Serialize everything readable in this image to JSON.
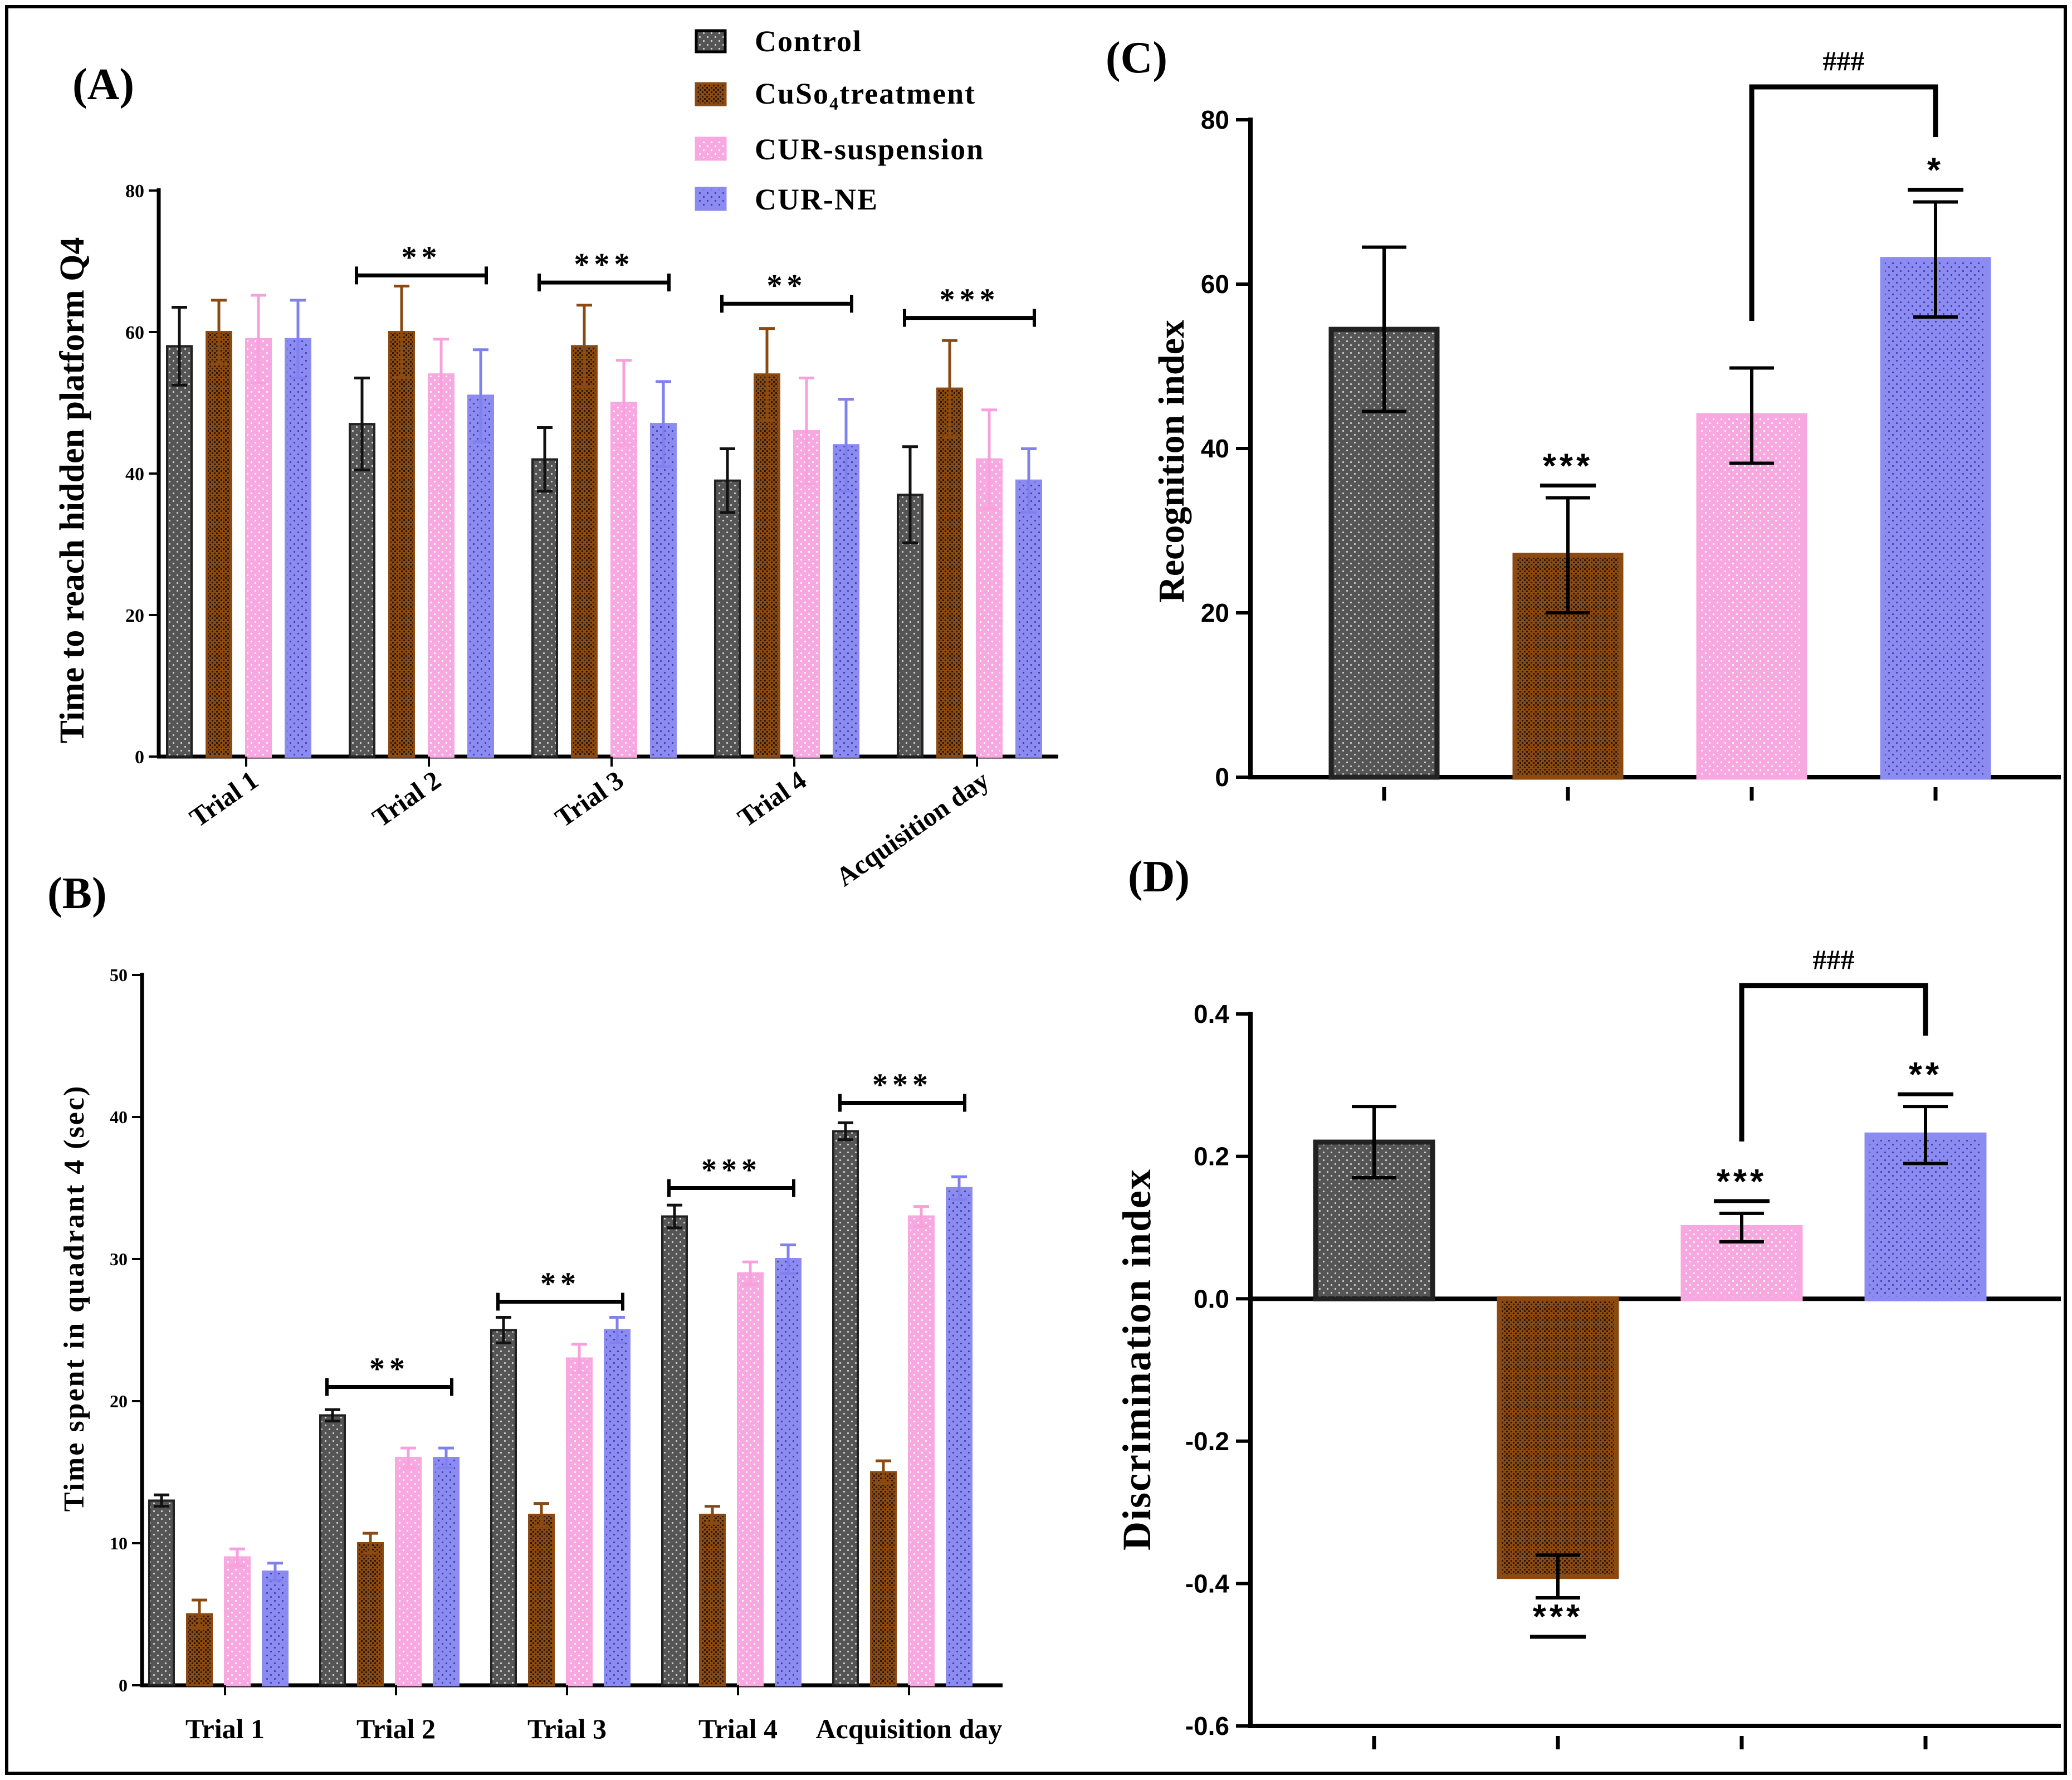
{
  "legend": {
    "items": [
      {
        "name": "Control",
        "color": "#555555"
      },
      {
        "name": "CuSo₄treatment",
        "color": "#8B4A12"
      },
      {
        "name": "CUR-suspension",
        "color": "#F8A8E0"
      },
      {
        "name": "CUR-NE",
        "color": "#8C8CF0"
      }
    ],
    "position": "top-center"
  },
  "chart_data": [
    {
      "id": "A",
      "panel_label": "(A)",
      "type": "bar",
      "title": "",
      "xlabel": "",
      "ylabel": "Time to reach hidden platform Q4",
      "ylim": [
        0,
        80
      ],
      "yticks": [
        "0",
        "20",
        "40",
        "60",
        "80"
      ],
      "categories": [
        "Trial 1",
        "Trial 2",
        "Trial 3",
        "Trial 4",
        "Acquisition day"
      ],
      "series": [
        {
          "name": "Control",
          "values": [
            58,
            47,
            42,
            39,
            37
          ],
          "errors": [
            5.5,
            6.5,
            4.5,
            4.5,
            6.8
          ]
        },
        {
          "name": "CuSo₄treatment",
          "values": [
            60,
            60,
            58,
            54,
            52
          ],
          "errors": [
            4.5,
            6.5,
            5.8,
            6.5,
            6.8
          ]
        },
        {
          "name": "CUR-suspension",
          "values": [
            59,
            54,
            50,
            46,
            42
          ],
          "errors": [
            6.2,
            5,
            6,
            7.5,
            7
          ]
        },
        {
          "name": "CUR-NE",
          "values": [
            59,
            51,
            47,
            44,
            39
          ],
          "errors": [
            5.5,
            6.5,
            6,
            6.5,
            4.5
          ]
        }
      ],
      "annotations": [
        {
          "text": "**",
          "category_index": 1,
          "y_value": 68
        },
        {
          "text": "***",
          "category_index": 2,
          "y_value": 67
        },
        {
          "text": "**",
          "category_index": 3,
          "y_value": 64
        },
        {
          "text": "***",
          "category_index": 4,
          "y_value": 62
        }
      ]
    },
    {
      "id": "B",
      "panel_label": "(B)",
      "type": "bar",
      "title": "",
      "xlabel": "",
      "ylabel": "Time spent in quadrant 4 (sec)",
      "ylim": [
        0,
        50
      ],
      "yticks": [
        "0",
        "10",
        "20",
        "30",
        "40",
        "50"
      ],
      "categories": [
        "Trial 1",
        "Trial 2",
        "Trial 3",
        "Trial 4",
        "Acquisition day"
      ],
      "series": [
        {
          "name": "Control",
          "values": [
            13,
            19,
            25,
            33,
            39
          ],
          "errors": [
            0.4,
            0.4,
            0.9,
            0.8,
            0.6
          ]
        },
        {
          "name": "CuSo₄treatment",
          "values": [
            5,
            10,
            12,
            12,
            15
          ],
          "errors": [
            1,
            0.7,
            0.8,
            0.6,
            0.8
          ]
        },
        {
          "name": "CUR-suspension",
          "values": [
            9,
            16,
            23,
            29,
            33
          ],
          "errors": [
            0.6,
            0.7,
            1,
            0.8,
            0.7
          ]
        },
        {
          "name": "CUR-NE",
          "values": [
            8,
            16,
            25,
            30,
            35
          ],
          "errors": [
            0.6,
            0.7,
            0.9,
            1,
            0.8
          ]
        }
      ],
      "annotations": [
        {
          "text": "**",
          "category_index": 1,
          "y_value": 21
        },
        {
          "text": "**",
          "category_index": 2,
          "y_value": 27
        },
        {
          "text": "***",
          "category_index": 3,
          "y_value": 35
        },
        {
          "text": "***",
          "category_index": 4,
          "y_value": 41
        }
      ]
    },
    {
      "id": "C",
      "panel_label": "(C)",
      "type": "bar",
      "title": "",
      "xlabel": "",
      "ylabel": "Recognition index",
      "ylim": [
        0,
        80
      ],
      "yticks": [
        "0",
        "20",
        "40",
        "60",
        "80"
      ],
      "categories": [
        "Control",
        "CuSo₄treatment",
        "CUR-suspension",
        "CUR-NE"
      ],
      "values": [
        54.5,
        27,
        44,
        63
      ],
      "errors": [
        10,
        7,
        5.8,
        7
      ],
      "significance": [
        "",
        "***",
        "",
        "*"
      ],
      "bracket": {
        "text": "###",
        "from_index": 2,
        "to_index": 3,
        "y_value": 84
      }
    },
    {
      "id": "D",
      "panel_label": "(D)",
      "type": "bar",
      "title": "",
      "xlabel": "",
      "ylabel": "Discrimination index",
      "ylim": [
        -0.6,
        0.4
      ],
      "yticks": [
        "-0.6",
        "-0.4",
        "-0.2",
        "0.0",
        "0.2",
        "0.4"
      ],
      "categories": [
        "Control",
        "CuSo₄treatment",
        "CUR-suspension",
        "CUR-NE"
      ],
      "values": [
        0.22,
        -0.39,
        0.1,
        0.23
      ],
      "errors": [
        0.05,
        0.03,
        0.02,
        0.04
      ],
      "significance": [
        "",
        "***",
        "***",
        "**"
      ],
      "bracket": {
        "text": "###",
        "from_index": 2,
        "to_index": 3,
        "y_value": 0.44
      }
    }
  ]
}
